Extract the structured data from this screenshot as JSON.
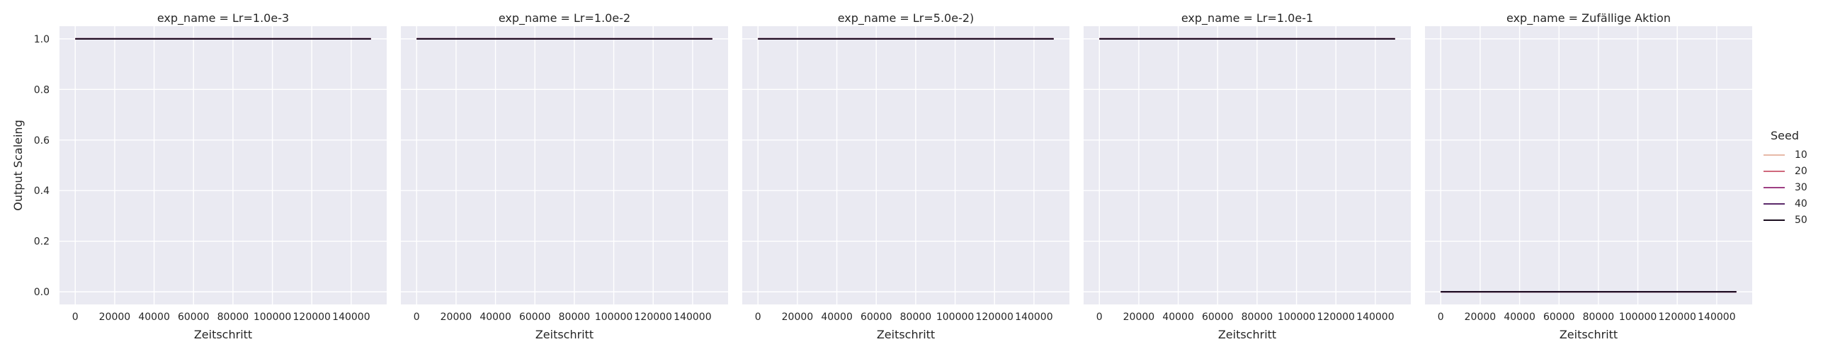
{
  "chart_data": {
    "type": "line",
    "ylabel": "Output Scaleing",
    "xlabel": "Zeitschritt",
    "xlim": [
      -8000,
      158000
    ],
    "ylim": [
      -0.05,
      1.05
    ],
    "x_ticks": [
      0,
      20000,
      40000,
      60000,
      80000,
      100000,
      120000,
      140000
    ],
    "y_ticks": [
      "0.0",
      "0.2",
      "0.4",
      "0.6",
      "0.8",
      "1.0"
    ],
    "grid": true,
    "legend": {
      "title": "Seed",
      "placement": "right",
      "entries": [
        {
          "label": "10",
          "color": "#e7b9a7"
        },
        {
          "label": "20",
          "color": "#d0697c"
        },
        {
          "label": "30",
          "color": "#9e3f83"
        },
        {
          "label": "40",
          "color": "#5b2a6a"
        },
        {
          "label": "50",
          "color": "#1a0c1e"
        }
      ]
    },
    "panels": [
      {
        "title": "exp_name = Lr=1.0e-3",
        "series": [
          {
            "seed": "10",
            "x": [
              0,
              150000
            ],
            "y": [
              1.0,
              1.0
            ]
          },
          {
            "seed": "20",
            "x": [
              0,
              150000
            ],
            "y": [
              1.0,
              1.0
            ]
          },
          {
            "seed": "30",
            "x": [
              0,
              150000
            ],
            "y": [
              1.0,
              1.0
            ]
          },
          {
            "seed": "40",
            "x": [
              0,
              150000
            ],
            "y": [
              1.0,
              1.0
            ]
          },
          {
            "seed": "50",
            "x": [
              0,
              150000
            ],
            "y": [
              1.0,
              1.0
            ]
          }
        ]
      },
      {
        "title": "exp_name = Lr=1.0e-2",
        "series": [
          {
            "seed": "10",
            "x": [
              0,
              150000
            ],
            "y": [
              1.0,
              1.0
            ]
          },
          {
            "seed": "20",
            "x": [
              0,
              150000
            ],
            "y": [
              1.0,
              1.0
            ]
          },
          {
            "seed": "30",
            "x": [
              0,
              150000
            ],
            "y": [
              1.0,
              1.0
            ]
          },
          {
            "seed": "40",
            "x": [
              0,
              150000
            ],
            "y": [
              1.0,
              1.0
            ]
          },
          {
            "seed": "50",
            "x": [
              0,
              150000
            ],
            "y": [
              1.0,
              1.0
            ]
          }
        ]
      },
      {
        "title": "exp_name = Lr=5.0e-2)",
        "series": [
          {
            "seed": "10",
            "x": [
              0,
              150000
            ],
            "y": [
              1.0,
              1.0
            ]
          },
          {
            "seed": "20",
            "x": [
              0,
              150000
            ],
            "y": [
              1.0,
              1.0
            ]
          },
          {
            "seed": "30",
            "x": [
              0,
              150000
            ],
            "y": [
              1.0,
              1.0
            ]
          },
          {
            "seed": "40",
            "x": [
              0,
              150000
            ],
            "y": [
              1.0,
              1.0
            ]
          },
          {
            "seed": "50",
            "x": [
              0,
              150000
            ],
            "y": [
              1.0,
              1.0
            ]
          }
        ]
      },
      {
        "title": "exp_name = Lr=1.0e-1",
        "series": [
          {
            "seed": "10",
            "x": [
              0,
              150000
            ],
            "y": [
              1.0,
              1.0
            ]
          },
          {
            "seed": "20",
            "x": [
              0,
              150000
            ],
            "y": [
              1.0,
              1.0
            ]
          },
          {
            "seed": "30",
            "x": [
              0,
              150000
            ],
            "y": [
              1.0,
              1.0
            ]
          },
          {
            "seed": "40",
            "x": [
              0,
              150000
            ],
            "y": [
              1.0,
              1.0
            ]
          },
          {
            "seed": "50",
            "x": [
              0,
              150000
            ],
            "y": [
              1.0,
              1.0
            ]
          }
        ]
      },
      {
        "title": "exp_name = Zufällige Aktion",
        "series": [
          {
            "seed": "10",
            "x": [
              0,
              150000
            ],
            "y": [
              0.0,
              0.0
            ]
          },
          {
            "seed": "20",
            "x": [
              0,
              150000
            ],
            "y": [
              0.0,
              0.0
            ]
          },
          {
            "seed": "30",
            "x": [
              0,
              150000
            ],
            "y": [
              0.0,
              0.0
            ]
          },
          {
            "seed": "40",
            "x": [
              0,
              150000
            ],
            "y": [
              0.0,
              0.0
            ]
          },
          {
            "seed": "50",
            "x": [
              0,
              150000
            ],
            "y": [
              0.0,
              0.0
            ]
          }
        ]
      }
    ]
  }
}
